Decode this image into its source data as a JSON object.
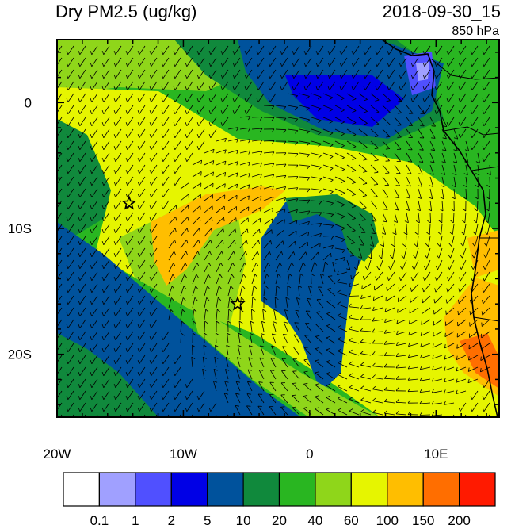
{
  "title": "Dry PM2.5 (ug/kg)",
  "datetime": "2018-09-30_15",
  "level": "850 hPa",
  "x_labels": [
    {
      "text": "20W",
      "lon": -20
    },
    {
      "text": "10W",
      "lon": -10
    },
    {
      "text": "0",
      "lon": 0
    },
    {
      "text": "10E",
      "lon": 10
    }
  ],
  "y_labels": [
    {
      "text": "0",
      "lat": 0
    },
    {
      "text": "10S",
      "lat": -10
    },
    {
      "text": "20S",
      "lat": -20
    }
  ],
  "colorbar": {
    "colors": [
      "#ffffff",
      "#a0a0ff",
      "#5050ff",
      "#0000e6",
      "#00529c",
      "#10893c",
      "#29b621",
      "#8fd61a",
      "#e6f500",
      "#ffbe00",
      "#ff6e00",
      "#ff1a00"
    ],
    "labels": [
      "0.1",
      "1",
      "2",
      "5",
      "10",
      "20",
      "40",
      "60",
      "100",
      "150",
      "200"
    ]
  },
  "markers": [
    {
      "name": "star-marker-1",
      "lon": -14.3,
      "lat": -8.0
    },
    {
      "name": "star-marker-2",
      "lon": -5.7,
      "lat": -16.0
    }
  ]
}
